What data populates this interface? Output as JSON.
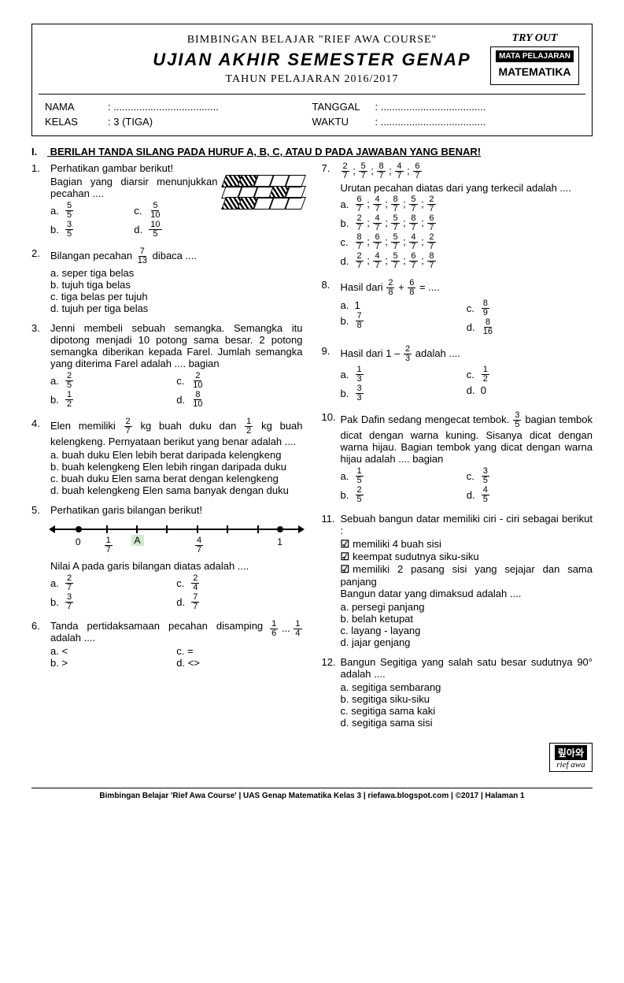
{
  "header": {
    "line1": "BIMBINGAN BELAJAR \"RIEF AWA COURSE\"",
    "line2": "UJIAN AKHIR SEMESTER GENAP",
    "line3": "TAHUN PELAJARAN 2016/2017",
    "tryout": "TRY OUT",
    "subject_header": "MATA PELAJARAN",
    "subject": "MATEMATIKA"
  },
  "info": {
    "nama_label": "NAMA",
    "nama_value": ": .....................................",
    "tanggal_label": "TANGGAL",
    "tanggal_value": ": .....................................",
    "kelas_label": "KELAS",
    "kelas_value": ": 3 (TIGA)",
    "waktu_label": "WAKTU",
    "waktu_value": ": ....................................."
  },
  "section1": {
    "roman": "I.",
    "title": "BERILAH TANDA SILANG PADA HURUF A, B, C, ATAU D PADA JAWABAN YANG BENAR!"
  },
  "q1": {
    "num": "1.",
    "text1": "Perhatikan gambar berikut!",
    "text2": "Bagian yang diarsir menunjukkan pecahan ....",
    "a": {
      "n": "5",
      "d": "5"
    },
    "b": {
      "n": "3",
      "d": "5"
    },
    "c": {
      "n": "5",
      "d": "10"
    },
    "d": {
      "n": "10",
      "d": "5"
    }
  },
  "q2": {
    "num": "2.",
    "text": "Bilangan pecahan",
    "frac": {
      "n": "7",
      "d": "13"
    },
    "text2": "dibaca ....",
    "a": "a. seper tiga belas",
    "b": "b. tujuh tiga belas",
    "c": "c. tiga belas per tujuh",
    "d": "d. tujuh per tiga belas"
  },
  "q3": {
    "num": "3.",
    "text": "Jenni membeli sebuah semangka. Semangka itu dipotong menjadi 10 potong sama besar. 2 potong semangka diberikan kepada Farel. Jumlah semangka yang diterima Farel adalah .... bagian",
    "a": {
      "n": "2",
      "d": "5"
    },
    "b": {
      "n": "1",
      "d": "2"
    },
    "c": {
      "n": "2",
      "d": "10"
    },
    "d": {
      "n": "8",
      "d": "10"
    }
  },
  "q4": {
    "num": "4.",
    "text1": "Elen memiliki",
    "f1": {
      "n": "2",
      "d": "7"
    },
    "text2": "kg buah duku dan",
    "f2": {
      "n": "1",
      "d": "2"
    },
    "text3": "kg buah kelengkeng. Pernyataan berikut yang benar adalah ....",
    "a": "a. buah duku Elen lebih berat daripada kelengkeng",
    "b": "b. buah kelengkeng Elen lebih ringan daripada duku",
    "c": "c. buah duku Elen sama berat dengan kelengkeng",
    "d": "d. buah kelengkeng Elen sama banyak dengan duku"
  },
  "q5": {
    "num": "5.",
    "text": "Perhatikan garis bilangan berikut!",
    "text2": "Nilai A pada garis bilangan diatas adalah ....",
    "ticks": {
      "t0": "0",
      "t1": {
        "n": "1",
        "d": "7"
      },
      "tA": "A",
      "t4": {
        "n": "4",
        "d": "7"
      },
      "t7": "1"
    },
    "a": {
      "n": "2",
      "d": "7"
    },
    "b": {
      "n": "3",
      "d": "7"
    },
    "c": {
      "n": "2",
      "d": "4"
    },
    "d": {
      "n": "7",
      "d": "7"
    }
  },
  "q6": {
    "num": "6.",
    "text": "Tanda pertidaksamaan pecahan disamping adalah ....",
    "f1": {
      "n": "1",
      "d": "6"
    },
    "mid": "...",
    "f2": {
      "n": "1",
      "d": "4"
    },
    "a": "a. <",
    "b": "b. >",
    "c": "c. =",
    "d": "d. <>"
  },
  "q7": {
    "num": "7.",
    "seq": [
      {
        "n": "2",
        "d": "7"
      },
      {
        "n": "5",
        "d": "7"
      },
      {
        "n": "8",
        "d": "7"
      },
      {
        "n": "4",
        "d": "7"
      },
      {
        "n": "6",
        "d": "7"
      }
    ],
    "text": "Urutan pecahan diatas dari yang terkecil adalah ....",
    "a": [
      {
        "n": "6",
        "d": "7"
      },
      {
        "n": "4",
        "d": "7"
      },
      {
        "n": "8",
        "d": "7"
      },
      {
        "n": "5",
        "d": "7"
      },
      {
        "n": "2",
        "d": "7"
      }
    ],
    "b": [
      {
        "n": "2",
        "d": "7"
      },
      {
        "n": "4",
        "d": "7"
      },
      {
        "n": "5",
        "d": "7"
      },
      {
        "n": "8",
        "d": "7"
      },
      {
        "n": "6",
        "d": "7"
      }
    ],
    "c": [
      {
        "n": "8",
        "d": "7"
      },
      {
        "n": "6",
        "d": "7"
      },
      {
        "n": "5",
        "d": "7"
      },
      {
        "n": "4",
        "d": "7"
      },
      {
        "n": "2",
        "d": "7"
      }
    ],
    "d": [
      {
        "n": "2",
        "d": "7"
      },
      {
        "n": "4",
        "d": "7"
      },
      {
        "n": "5",
        "d": "7"
      },
      {
        "n": "6",
        "d": "7"
      },
      {
        "n": "8",
        "d": "7"
      }
    ]
  },
  "q8": {
    "num": "8.",
    "text1": "Hasil dari",
    "f1": {
      "n": "2",
      "d": "8"
    },
    "op": "+",
    "f2": {
      "n": "6",
      "d": "8"
    },
    "eq": "= ....",
    "a": "1",
    "b": {
      "n": "7",
      "d": "8"
    },
    "c": {
      "n": "8",
      "d": "9"
    },
    "d": {
      "n": "8",
      "d": "16"
    }
  },
  "q9": {
    "num": "9.",
    "text1": "Hasil dari 1 –",
    "f1": {
      "n": "2",
      "d": "3"
    },
    "text2": "adalah ....",
    "a": {
      "n": "1",
      "d": "3"
    },
    "b": {
      "n": "3",
      "d": "3"
    },
    "c": {
      "n": "1",
      "d": "2"
    },
    "d": "0"
  },
  "q10": {
    "num": "10.",
    "text1": "Pak Dafin sedang mengecat tembok.",
    "f1": {
      "n": "3",
      "d": "5"
    },
    "text2": "bagian tembok dicat dengan warna kuning. Sisanya dicat dengan warna hijau. Bagian tembok yang dicat dengan warna hijau adalah .... bagian",
    "a": {
      "n": "1",
      "d": "5"
    },
    "b": {
      "n": "2",
      "d": "5"
    },
    "c": {
      "n": "3",
      "d": "5"
    },
    "d": {
      "n": "4",
      "d": "5"
    }
  },
  "q11": {
    "num": "11.",
    "text1": "Sebuah bangun datar memiliki ciri - ciri sebagai berikut :",
    "c1": "memiliki 4 buah sisi",
    "c2": "keempat sudutnya siku-siku",
    "c3": "memiliki 2 pasang sisi yang sejajar dan sama panjang",
    "text2": "Bangun datar yang dimaksud adalah ....",
    "a": "a. persegi panjang",
    "b": "b. belah ketupat",
    "c": "c. layang - layang",
    "d": "d. jajar genjang"
  },
  "q12": {
    "num": "12.",
    "text": "Bangun Segitiga yang salah satu besar sudutnya 90° adalah ....",
    "a": "a. segitiga sembarang",
    "b": "b. segitiga siku-siku",
    "c": "c. segitiga sama kaki",
    "d": "d. segitiga sama sisi"
  },
  "logo": {
    "top": "맆아와",
    "bot": "rief awa"
  },
  "footer": "Bimbingan Belajar 'Rief Awa Course' | UAS Genap Matematika Kelas 3 | riefawa.blogspot.com | ©2017 | Halaman 1"
}
